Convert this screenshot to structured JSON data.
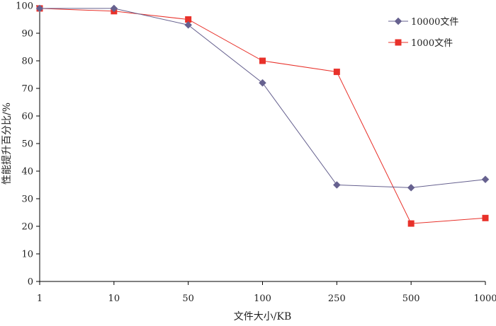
{
  "chart_data": {
    "type": "line",
    "title": "",
    "xlabel": "文件大小/KB",
    "ylabel": "性能提升百分比/%",
    "categories": [
      "1",
      "10",
      "50",
      "100",
      "250",
      "500",
      "1000"
    ],
    "ylim": [
      0,
      100
    ],
    "yticks": [
      "0",
      "10",
      "20",
      "30",
      "40",
      "50",
      "60",
      "70",
      "80",
      "90",
      "100"
    ],
    "grid": false,
    "legend_position": "top-right",
    "series": [
      {
        "name": "10000文件",
        "color": "#66618f",
        "marker": "diamond",
        "values": [
          99,
          99,
          93,
          72,
          35,
          34,
          37
        ]
      },
      {
        "name": "1000文件",
        "color": "#e8312a",
        "marker": "square",
        "values": [
          99,
          98,
          95,
          80,
          76,
          21,
          23
        ]
      }
    ]
  }
}
